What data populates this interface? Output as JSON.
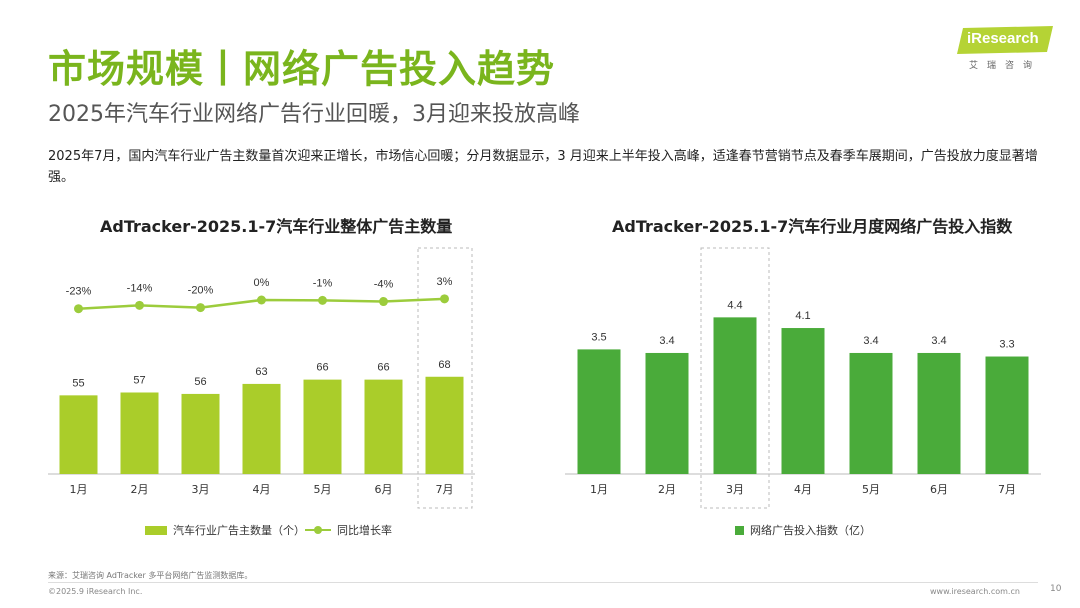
{
  "header": {
    "title": "市场规模丨网络广告投入趋势",
    "subtitle": "2025年汽车行业网络广告行业回暖，3月迎来投放高峰",
    "description": "2025年7月，国内汽车行业广告主数量首次迎来正增长，市场信心回暖；分月数据显示，3 月迎来上半年投入高峰，适逢春节营销节点及春季车展期间，广告投放力度显著增强。"
  },
  "logo": {
    "text": "iResearch",
    "sub": "艾瑞咨询"
  },
  "colors": {
    "accent": "#7ab51d",
    "bar_light": "#aacd2a",
    "line": "#9ccc3c",
    "bar_dark": "#4aab3a"
  },
  "chart_data": [
    {
      "type": "bar",
      "title": "AdTracker-2025.1-7汽车行业整体广告主数量",
      "categories": [
        "1月",
        "2月",
        "3月",
        "4月",
        "5月",
        "6月",
        "7月"
      ],
      "series": [
        {
          "name": "汽车行业广告主数量（个）",
          "type": "bar",
          "values": [
            55,
            57,
            56,
            63,
            66,
            66,
            68
          ]
        },
        {
          "name": "同比增长率",
          "type": "line",
          "values": [
            -23,
            -14,
            -20,
            0,
            -1,
            -4,
            3
          ],
          "labels": [
            "-23%",
            "-14%",
            "-20%",
            "0%",
            "-1%",
            "-4%",
            "3%"
          ]
        }
      ],
      "highlight_category": "7月"
    },
    {
      "type": "bar",
      "title": "AdTracker-2025.1-7汽车行业月度网络广告投入指数",
      "categories": [
        "1月",
        "2月",
        "3月",
        "4月",
        "5月",
        "6月",
        "7月"
      ],
      "series": [
        {
          "name": "网络广告投入指数（亿）",
          "values": [
            3.5,
            3.4,
            4.4,
            4.1,
            3.4,
            3.4,
            3.3
          ]
        }
      ],
      "highlight_category": "3月"
    }
  ],
  "footer": {
    "source": "来源：艾瑞咨询 AdTracker 多平台网络广告监测数据库。",
    "copyright": "©2025.9 iResearch Inc.",
    "url": "www.iresearch.com.cn",
    "page": "10"
  }
}
